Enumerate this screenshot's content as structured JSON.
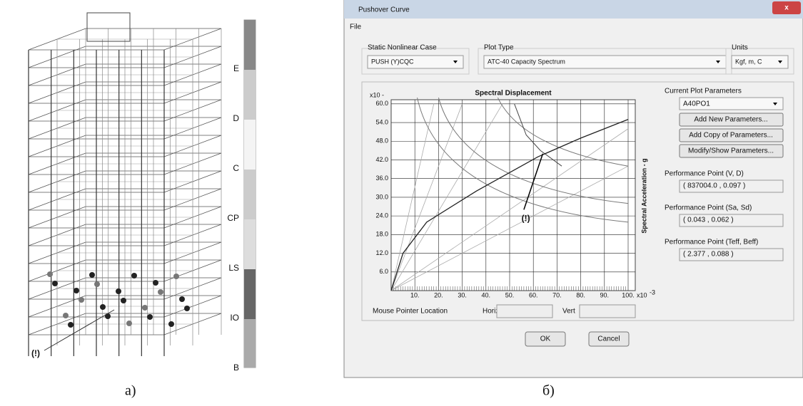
{
  "left_panel": {
    "labels": [
      "E",
      "D",
      "C",
      "CP",
      "LS",
      "IO",
      "B"
    ],
    "annotation": "(!)",
    "caption": "а)"
  },
  "dialog": {
    "title": "Pushover Curve",
    "menu": {
      "file": "File"
    },
    "groups": [
      {
        "label": "Static Nonlinear Case",
        "value": "PUSH (Y)CQC"
      },
      {
        "label": "Plot Type",
        "value": "ATC-40 Capacity Spectrum"
      },
      {
        "label": "Units",
        "value": "Kgf, m, C"
      }
    ],
    "plot": {
      "title": "Spectral Displacement",
      "y_label": "Spectral Acceleration - g",
      "y_multiplier": "x10 -",
      "x_multiplier": "x10",
      "x_exponent": "-3",
      "yticks": [
        "60.0",
        "54.0",
        "48.0",
        "42.0",
        "36.0",
        "30.0",
        "24.0",
        "18.0",
        "12.0",
        "6.0"
      ],
      "xticks": [
        "10.",
        "20.",
        "30.",
        "40.",
        "50.",
        "60.",
        "70.",
        "80.",
        "90.",
        "100."
      ],
      "annotation": "(!)"
    },
    "side": {
      "heading": "Current Plot Parameters",
      "dropdown": "A40PO1",
      "buttons": [
        "Add New Parameters...",
        "Add Copy of Parameters...",
        "Modify/Show Parameters..."
      ],
      "performance": [
        {
          "label": "Performance Point (V, D)",
          "value": "( 837004.0 , 0.097 )"
        },
        {
          "label": "Performance Point (Sa, Sd)",
          "value": "( 0.043 , 0.062 )"
        },
        {
          "label": "Performance Point (Teff, Beff)",
          "value": "( 2.377 , 0.088 )"
        }
      ]
    },
    "mouse": {
      "label": "Mouse Pointer Location",
      "horiz": "Horiz",
      "vert": "Vert"
    },
    "ok": "OK",
    "cancel": "Cancel",
    "caption": "б)"
  }
}
